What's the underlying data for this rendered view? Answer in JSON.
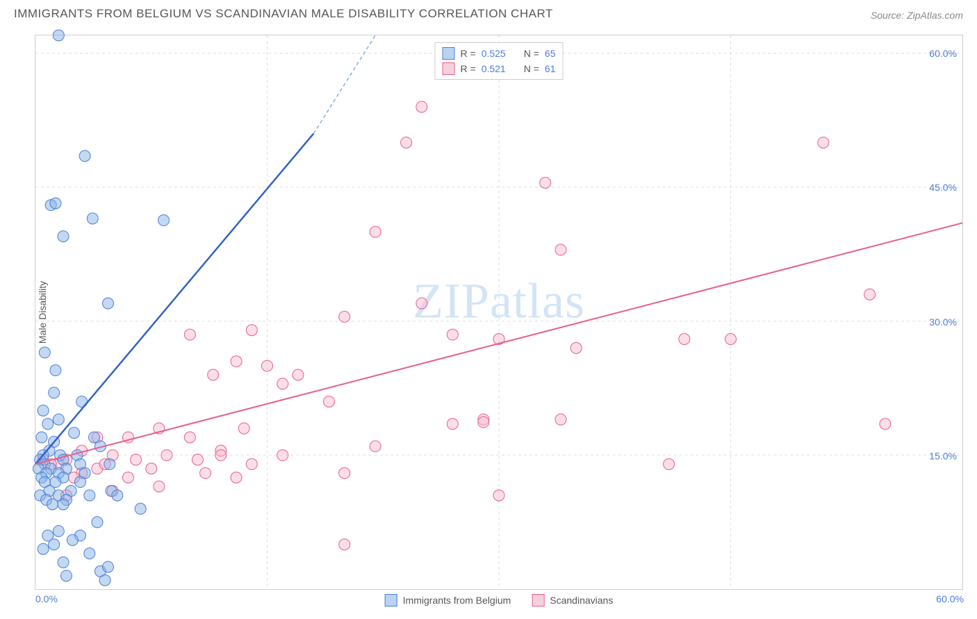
{
  "header": {
    "title": "IMMIGRANTS FROM BELGIUM VS SCANDINAVIAN MALE DISABILITY CORRELATION CHART",
    "source_prefix": "Source: ",
    "source_name": "ZipAtlas.com"
  },
  "watermark": "ZIPatlas",
  "chart": {
    "type": "scatter",
    "y_label": "Male Disability",
    "xlim": [
      0,
      60
    ],
    "ylim": [
      0,
      62
    ],
    "x_ticks": [
      {
        "val": 0.0,
        "label": "0.0%"
      },
      {
        "val": 60.0,
        "label": "60.0%"
      }
    ],
    "y_ticks": [
      {
        "val": 15.0,
        "label": "15.0%"
      },
      {
        "val": 30.0,
        "label": "30.0%"
      },
      {
        "val": 45.0,
        "label": "45.0%"
      },
      {
        "val": 60.0,
        "label": "60.0%"
      }
    ],
    "x_grid_vals": [
      15,
      30,
      45
    ],
    "marker_radius": 8,
    "colors": {
      "series_blue_fill": "#b8d4f0",
      "series_blue_stroke": "#4a7dd8",
      "series_pink_fill": "#f8d0dc",
      "series_pink_stroke": "#e85d8c",
      "grid": "#dddddd",
      "background": "#ffffff",
      "text": "#555555",
      "tick_text": "#4a7dd8"
    },
    "legend_top": {
      "rows": [
        {
          "swatch": "blue",
          "r_label": "R =",
          "r_val": "0.525",
          "n_label": "N =",
          "n_val": "65"
        },
        {
          "swatch": "pink",
          "r_label": "R =",
          "r_val": "0.521",
          "n_label": "N =",
          "n_val": "61"
        }
      ]
    },
    "legend_bottom": {
      "items": [
        {
          "swatch": "blue",
          "label": "Immigrants from Belgium"
        },
        {
          "swatch": "pink",
          "label": "Scandinavians"
        }
      ]
    },
    "series": [
      {
        "name": "blue",
        "trend": {
          "x1": 0,
          "y1": 14,
          "x2_solid": 18,
          "y2_solid": 51,
          "x2_dash": 22,
          "y2_dash": 62
        },
        "points": [
          [
            1.5,
            62
          ],
          [
            3.2,
            48.5
          ],
          [
            1,
            43
          ],
          [
            1.3,
            43.2
          ],
          [
            3.7,
            41.5
          ],
          [
            8.3,
            41.3
          ],
          [
            1.8,
            39.5
          ],
          [
            4.7,
            32
          ],
          [
            0.6,
            26.5
          ],
          [
            1.3,
            24.5
          ],
          [
            3,
            21
          ],
          [
            1.2,
            22
          ],
          [
            0.5,
            20
          ],
          [
            1.5,
            19
          ],
          [
            0.8,
            18.5
          ],
          [
            2.5,
            17.5
          ],
          [
            3.8,
            17
          ],
          [
            0.4,
            17
          ],
          [
            1.2,
            16.5
          ],
          [
            0.9,
            15.5
          ],
          [
            4.2,
            16
          ],
          [
            0.5,
            15
          ],
          [
            1.6,
            15
          ],
          [
            2.7,
            15
          ],
          [
            0.3,
            14.5
          ],
          [
            1.8,
            14.5
          ],
          [
            0.6,
            14
          ],
          [
            2.9,
            14
          ],
          [
            4.8,
            14
          ],
          [
            1,
            13.5
          ],
          [
            0.2,
            13.5
          ],
          [
            2,
            13.5
          ],
          [
            0.7,
            13
          ],
          [
            1.5,
            13
          ],
          [
            3.2,
            13
          ],
          [
            0.4,
            12.5
          ],
          [
            1.8,
            12.5
          ],
          [
            2.9,
            12
          ],
          [
            0.6,
            12
          ],
          [
            1.3,
            12
          ],
          [
            4.9,
            11
          ],
          [
            0.9,
            11
          ],
          [
            2.3,
            11
          ],
          [
            6.8,
            9
          ],
          [
            1.5,
            10.5
          ],
          [
            0.3,
            10.5
          ],
          [
            3.5,
            10.5
          ],
          [
            5.3,
            10.5
          ],
          [
            0.7,
            10
          ],
          [
            2,
            10
          ],
          [
            1.1,
            9.5
          ],
          [
            1.8,
            9.5
          ],
          [
            4,
            7.5
          ],
          [
            2.9,
            6
          ],
          [
            1.5,
            6.5
          ],
          [
            0.8,
            6
          ],
          [
            2.4,
            5.5
          ],
          [
            1.2,
            5
          ],
          [
            4.2,
            2
          ],
          [
            0.5,
            4.5
          ],
          [
            3.5,
            4
          ],
          [
            1.8,
            3
          ],
          [
            4.7,
            2.5
          ],
          [
            2,
            1.5
          ],
          [
            4.5,
            1
          ]
        ]
      },
      {
        "name": "pink",
        "trend": {
          "x1": 0,
          "y1": 14,
          "x2": 60,
          "y2": 41
        },
        "points": [
          [
            25,
            54
          ],
          [
            24,
            50
          ],
          [
            51,
            50
          ],
          [
            33,
            45.5
          ],
          [
            22,
            40
          ],
          [
            34,
            38
          ],
          [
            54,
            33
          ],
          [
            25,
            32
          ],
          [
            20,
            30.5
          ],
          [
            14,
            29
          ],
          [
            10,
            28.5
          ],
          [
            27,
            28.5
          ],
          [
            30,
            28
          ],
          [
            42,
            28
          ],
          [
            15,
            25
          ],
          [
            35,
            27
          ],
          [
            13,
            25.5
          ],
          [
            17,
            24
          ],
          [
            11.5,
            24
          ],
          [
            16,
            23
          ],
          [
            45,
            28
          ],
          [
            29,
            19
          ],
          [
            4,
            17
          ],
          [
            34,
            19
          ],
          [
            8,
            18
          ],
          [
            13.5,
            18
          ],
          [
            55,
            18.5
          ],
          [
            19,
            21
          ],
          [
            6,
            17
          ],
          [
            10,
            17
          ],
          [
            27,
            18.5
          ],
          [
            29,
            18.7
          ],
          [
            3,
            15.5
          ],
          [
            12,
            15.5
          ],
          [
            22,
            16
          ],
          [
            5,
            15
          ],
          [
            8.5,
            15
          ],
          [
            12,
            15
          ],
          [
            16,
            15
          ],
          [
            2,
            14.5
          ],
          [
            6.5,
            14.5
          ],
          [
            10.5,
            14.5
          ],
          [
            14,
            14
          ],
          [
            1.5,
            14
          ],
          [
            4,
            13.5
          ],
          [
            7.5,
            13.5
          ],
          [
            41,
            14
          ],
          [
            20,
            13
          ],
          [
            3,
            13
          ],
          [
            11,
            13
          ],
          [
            2.5,
            12.5
          ],
          [
            6,
            12.5
          ],
          [
            13,
            12.5
          ],
          [
            1,
            14
          ],
          [
            4.5,
            14
          ],
          [
            8,
            11.5
          ],
          [
            30,
            10.5
          ],
          [
            5,
            11
          ],
          [
            2,
            10.5
          ],
          [
            20,
            5
          ],
          [
            0.5,
            14.5
          ]
        ]
      }
    ]
  }
}
